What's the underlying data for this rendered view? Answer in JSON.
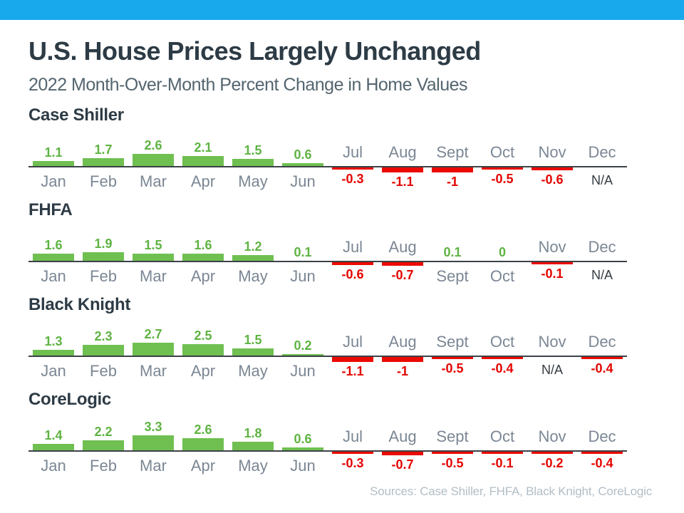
{
  "header": {
    "title": "U.S. House Prices Largely Unchanged",
    "subtitle": "2022 Month-Over-Month Percent Change in Home Values"
  },
  "footer": {
    "sources": "Sources: Case Shiller, FHFA, Black Knight, CoreLogic"
  },
  "labels": {
    "na": "N/A"
  },
  "colors": {
    "accent_bar": "#17a9eb",
    "heading": "#2d3b45",
    "positive_bar": "#6fbf51",
    "positive_text": "#5fb343",
    "negative_bar": "#ea0a00",
    "negative_text": "#e40400",
    "month_label": "#7b8794",
    "na_text": "#333b41",
    "baseline": "#3c4147",
    "sources_text": "#b2bec6"
  },
  "chart_data": [
    {
      "type": "bar",
      "title": "Case Shiller",
      "categories": [
        "Jan",
        "Feb",
        "Mar",
        "Apr",
        "May",
        "Jun",
        "Jul",
        "Aug",
        "Sept",
        "Oct",
        "Nov",
        "Dec"
      ],
      "values": [
        1.1,
        1.7,
        2.6,
        2.1,
        1.5,
        0.6,
        -0.3,
        -1.1,
        -1,
        -0.5,
        -0.6,
        null
      ],
      "null_display": "N/A",
      "ylabel": "Percent change",
      "legend": "none",
      "grid": false
    },
    {
      "type": "bar",
      "title": "FHFA",
      "categories": [
        "Jan",
        "Feb",
        "Mar",
        "Apr",
        "May",
        "Jun",
        "Jul",
        "Aug",
        "Sept",
        "Oct",
        "Nov",
        "Dec"
      ],
      "values": [
        1.6,
        1.9,
        1.5,
        1.6,
        1.2,
        0.1,
        -0.6,
        -0.7,
        0.1,
        0,
        -0.1,
        null
      ],
      "null_display": "N/A",
      "ylabel": "Percent change",
      "legend": "none",
      "grid": false
    },
    {
      "type": "bar",
      "title": "Black Knight",
      "categories": [
        "Jan",
        "Feb",
        "Mar",
        "Apr",
        "May",
        "Jun",
        "Jul",
        "Aug",
        "Sept",
        "Oct",
        "Nov",
        "Dec"
      ],
      "values": [
        1.3,
        2.3,
        2.7,
        2.5,
        1.5,
        0.2,
        -1.1,
        -1,
        -0.5,
        -0.4,
        null,
        -0.4
      ],
      "null_display": "N/A",
      "ylabel": "Percent change",
      "legend": "none",
      "grid": false
    },
    {
      "type": "bar",
      "title": "CoreLogic",
      "categories": [
        "Jan",
        "Feb",
        "Mar",
        "Apr",
        "May",
        "Jun",
        "Jul",
        "Aug",
        "Sept",
        "Oct",
        "Nov",
        "Dec"
      ],
      "values": [
        1.4,
        2.2,
        3.3,
        2.6,
        1.8,
        0.6,
        -0.3,
        -0.7,
        -0.5,
        -0.1,
        -0.2,
        -0.4
      ],
      "null_display": "N/A",
      "ylabel": "Percent change",
      "legend": "none",
      "grid": false
    }
  ]
}
